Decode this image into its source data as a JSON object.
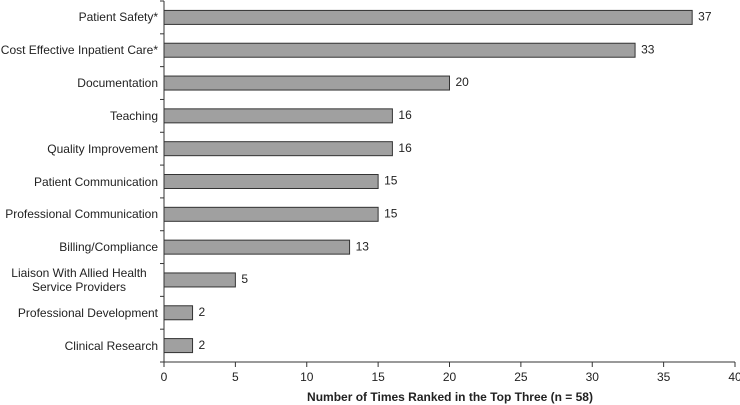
{
  "chart_data": {
    "type": "barh",
    "categories": [
      "Patient Safety*",
      "Cost Effective Inpatient Care*",
      "Documentation",
      "Teaching",
      "Quality Improvement",
      "Patient Communication",
      "Professional Communication",
      "Billing/Compliance",
      "Liaison With Allied Health Service Providers",
      "Professional Development",
      "Clinical Research"
    ],
    "values": [
      37,
      33,
      20,
      16,
      16,
      15,
      15,
      13,
      5,
      2,
      2
    ],
    "color": "#a0a0a0",
    "xlim": [
      0,
      40
    ],
    "xticks": [
      0,
      5,
      10,
      15,
      20,
      25,
      30,
      35,
      40
    ],
    "xlabel": "Number of Times Ranked in the Top Three (n = 58)"
  }
}
